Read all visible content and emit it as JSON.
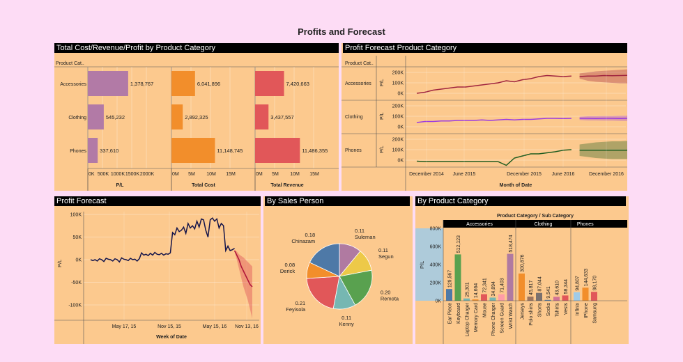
{
  "page": {
    "title": "Profits and Forecast"
  },
  "panels": {
    "totals": {
      "title": "Total Cost/Revenue/Profit by Product Category"
    },
    "forecast_cat": {
      "title": "Profit Forecast Product Category"
    },
    "profit_forecast": {
      "title": "Profit Forecast"
    },
    "sales_person": {
      "title": "By Sales Person"
    },
    "by_category": {
      "title": "By Product Category"
    }
  },
  "colors": {
    "background": "#fddcf5",
    "panel": "#fcc98e",
    "profit_bar": "#b27aa6",
    "cost_bar": "#f28e2b",
    "revenue_bar": "#e15759",
    "line_accessories": "#a0243f",
    "line_clothing": "#9b3be0",
    "line_phones": "#1f5c1f"
  },
  "chart_data": [
    {
      "id": "totals",
      "type": "bar",
      "row_header": "Product Cat..",
      "categories": [
        "Accessories",
        "Clothing",
        "Phones"
      ],
      "series": [
        {
          "name": "P/L",
          "values": [
            1378767,
            545232,
            337610
          ],
          "labels": [
            "1,378,767",
            "545,232",
            "337,610"
          ],
          "ticks": [
            "0K",
            "500K",
            "1000K",
            "1500K",
            "2000K"
          ],
          "max": 2000000
        },
        {
          "name": "Total Cost",
          "values": [
            6041896,
            2892325,
            11148745
          ],
          "labels": [
            "6,041,896",
            "2,892,325",
            "11,148,745"
          ],
          "ticks": [
            "0M",
            "5M",
            "10M",
            "15M"
          ],
          "max": 15000000
        },
        {
          "name": "Total Revenue",
          "values": [
            7420663,
            3437557,
            11486355
          ],
          "labels": [
            "7,420,663",
            "3,437,557",
            "11,486,355"
          ],
          "ticks": [
            "0M",
            "5M",
            "10M",
            "15M"
          ],
          "max": 15000000
        }
      ]
    },
    {
      "id": "forecast_cat",
      "type": "line",
      "row_header": "Product Cat..",
      "ylabel": "P/L",
      "xlabel": "Month of Date",
      "x_ticks": [
        "December 2014",
        "June 2015",
        "December 2015",
        "June 2016",
        "December 2016"
      ],
      "y_ticks": [
        "0K",
        "100K",
        "200K"
      ],
      "rows": [
        {
          "name": "Accessories",
          "values": [
            0,
            10,
            30,
            40,
            50,
            60,
            60,
            70,
            80,
            90,
            100,
            120,
            110,
            130,
            140,
            160,
            170,
            165,
            160,
            165
          ],
          "forecast": [
            160,
            165,
            165,
            170,
            168,
            170,
            172
          ],
          "band_low": [
            140,
            120,
            110,
            105,
            100,
            95,
            95
          ],
          "band_high": [
            190,
            200,
            210,
            215,
            220,
            225,
            230
          ]
        },
        {
          "name": "Clothing",
          "values": [
            40,
            50,
            50,
            55,
            55,
            60,
            60,
            60,
            65,
            60,
            65,
            70,
            65,
            70,
            70,
            75,
            80,
            80,
            78,
            80
          ],
          "forecast": [
            80,
            80,
            78,
            80,
            80,
            78,
            80
          ],
          "band_low": [
            65,
            60,
            60,
            58,
            58,
            56,
            55
          ],
          "band_high": [
            95,
            100,
            100,
            102,
            102,
            104,
            105
          ]
        },
        {
          "name": "Phones",
          "values": [
            -10,
            -15,
            -15,
            -15,
            -15,
            -15,
            -15,
            -15,
            -15,
            -15,
            -15,
            -50,
            20,
            40,
            60,
            60,
            70,
            80,
            95,
            100
          ],
          "forecast": [
            95,
            95,
            95,
            95,
            95,
            95,
            95
          ],
          "band_low": [
            40,
            30,
            20,
            15,
            10,
            10,
            10
          ],
          "band_high": [
            150,
            160,
            170,
            175,
            180,
            180,
            185
          ]
        }
      ]
    },
    {
      "id": "profit_forecast",
      "type": "line",
      "ylabel": "P/L",
      "xlabel": "Week of Date",
      "x_ticks": [
        "May 17, 15",
        "Nov 15, 15",
        "May 15, 16",
        "Nov 13, 16"
      ],
      "y_ticks": [
        "100K",
        "50K",
        "0K",
        "-50K",
        "-100K"
      ],
      "values": [
        0,
        -2,
        0,
        -3,
        2,
        0,
        -4,
        3,
        1,
        0,
        -3,
        2,
        0,
        -5,
        4,
        1,
        0,
        -2,
        3,
        0,
        1,
        -3,
        2,
        15,
        10,
        12,
        9,
        14,
        10,
        16,
        12,
        11,
        14,
        10,
        13,
        12,
        15,
        60,
        55,
        70,
        62,
        65,
        72,
        58,
        80,
        70,
        75,
        68,
        85,
        72,
        90,
        88,
        65,
        50,
        88,
        92,
        85,
        90,
        70,
        80,
        75,
        20,
        30,
        20,
        22,
        25
      ],
      "forecast": [
        20,
        10,
        0,
        -15,
        -25,
        -35,
        -45,
        -55,
        -60
      ],
      "band_low": [
        20,
        0,
        -20,
        -40,
        -60,
        -75,
        -90,
        -110,
        -130
      ],
      "band_high": [
        20,
        18,
        12,
        8,
        5,
        0,
        -5,
        -10,
        -15
      ]
    },
    {
      "id": "sales_person",
      "type": "pie",
      "slices": [
        {
          "name": "Suleman",
          "value": 0.11,
          "label": "0.11",
          "color": "#b07aa1"
        },
        {
          "name": "Segun",
          "value": 0.11,
          "label": "0.11",
          "color": "#edc948"
        },
        {
          "name": "Remota",
          "value": 0.2,
          "label": "0.20",
          "color": "#59a14f"
        },
        {
          "name": "Kenny",
          "value": 0.11,
          "label": "0.11",
          "color": "#76b7b2"
        },
        {
          "name": "Feyisola",
          "value": 0.21,
          "label": "0.21",
          "color": "#e15759"
        },
        {
          "name": "Derick",
          "value": 0.08,
          "label": "0.08",
          "color": "#f28e2b"
        },
        {
          "name": "Chinazam",
          "value": 0.18,
          "label": "0.18",
          "color": "#4e79a7"
        }
      ]
    },
    {
      "id": "by_category",
      "type": "bar",
      "header": "Product Category / Sub Category",
      "ylabel": "P/L",
      "y_ticks": [
        "0K",
        "200K",
        "400K",
        "600K",
        "800K"
      ],
      "ymax": 800000,
      "groups": [
        {
          "name": "Accessories",
          "items": [
            {
              "sub": "Ear Piece",
              "value": 129567,
              "label": "129,567",
              "color": "#4e79a7"
            },
            {
              "sub": "Keyboard",
              "value": 512123,
              "label": "512,123",
              "color": "#59a14f"
            },
            {
              "sub": "Laptop Charger",
              "value": 25301,
              "label": "25,301",
              "color": "#76b7b2"
            },
            {
              "sub": "Memory Card",
              "value": 14664,
              "label": "14,664",
              "color": "#f28e2b"
            },
            {
              "sub": "Mouse",
              "value": 72341,
              "label": "72,341",
              "color": "#e15759"
            },
            {
              "sub": "Phone Charger",
              "value": 34894,
              "label": "34,894",
              "color": "#76b7b2"
            },
            {
              "sub": "Screen Guard",
              "value": 71403,
              "label": "71,403",
              "color": "#ff9da7"
            },
            {
              "sub": "Wrist Watch",
              "value": 518474,
              "label": "518,474",
              "color": "#b07aa1"
            }
          ]
        },
        {
          "name": "Clothing",
          "items": [
            {
              "sub": "Jerseys",
              "value": 300876,
              "label": "300,876",
              "color": "#f28e2b"
            },
            {
              "sub": "Polo shirts",
              "value": 45817,
              "label": "45,817",
              "color": "#9c755f"
            },
            {
              "sub": "Shorts",
              "value": 87044,
              "label": "87,044",
              "color": "#79706e"
            },
            {
              "sub": "Socks",
              "value": 9541,
              "label": "9,541",
              "color": "#4e79a7"
            },
            {
              "sub": "Tshirts",
              "value": 43610,
              "label": "43,610",
              "color": "#d37295"
            },
            {
              "sub": "Vests",
              "value": 58344,
              "label": "58,344",
              "color": "#e15759"
            }
          ]
        },
        {
          "name": "Phones",
          "items": [
            {
              "sub": "Infinix",
              "value": 94807,
              "label": "94,807",
              "color": "#a0cbe8"
            },
            {
              "sub": "IPhone",
              "value": 144633,
              "label": "144,633",
              "color": "#f28e2b"
            },
            {
              "sub": "Samsung",
              "value": 98170,
              "label": "98,170",
              "color": "#e15759"
            }
          ]
        }
      ]
    }
  ]
}
